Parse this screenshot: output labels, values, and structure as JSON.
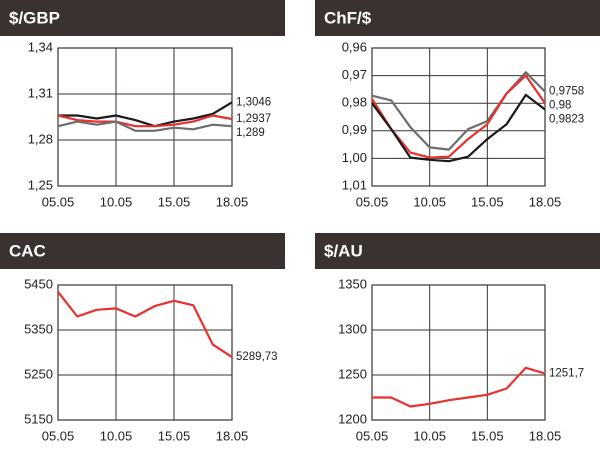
{
  "chart_data": [
    {
      "type": "line",
      "title": "$/GBP",
      "categories": [
        "05.05",
        null,
        null,
        "10.05",
        null,
        null,
        "15.05",
        null,
        null,
        "18.05"
      ],
      "series": [
        {
          "color": "#1a1a1a",
          "values": [
            1.296,
            1.296,
            1.294,
            1.296,
            1.293,
            1.289,
            1.292,
            1.294,
            1.297,
            1.3046
          ],
          "value_labels": [
            null,
            null,
            null,
            null,
            null,
            null,
            null,
            null,
            null,
            "1,3046"
          ]
        },
        {
          "color": "#e8312f",
          "values": [
            1.296,
            1.293,
            1.292,
            1.292,
            1.289,
            1.289,
            1.29,
            1.292,
            1.296,
            1.2937
          ],
          "value_labels": [
            null,
            null,
            null,
            null,
            null,
            null,
            null,
            null,
            null,
            "1,2937"
          ]
        },
        {
          "color": "#6d6d6d",
          "values": [
            1.289,
            1.292,
            1.29,
            1.292,
            1.286,
            1.286,
            1.288,
            1.287,
            1.29,
            1.289
          ],
          "value_labels": [
            null,
            null,
            null,
            null,
            null,
            null,
            null,
            null,
            null,
            "1,289"
          ]
        }
      ],
      "ylim": [
        1.25,
        1.34
      ],
      "yticks": [
        {
          "value": 1.34,
          "label": "1,34"
        },
        {
          "value": 1.31,
          "label": "1,31"
        },
        {
          "value": 1.28,
          "label": "1,28"
        },
        {
          "value": 1.25,
          "label": "1,25"
        }
      ],
      "grid": true
    },
    {
      "type": "line",
      "title": "ChF/$",
      "categories": [
        "05.05",
        null,
        null,
        "10.05",
        null,
        null,
        "15.05",
        null,
        null,
        "18.05"
      ],
      "series": [
        {
          "color": "#6d6d6d",
          "values": [
            0.9773,
            0.979,
            0.9887,
            0.996,
            0.9968,
            0.9894,
            0.9865,
            0.9765,
            0.9688,
            0.9758
          ],
          "value_labels": [
            null,
            null,
            null,
            null,
            null,
            null,
            null,
            null,
            null,
            "0,9758"
          ]
        },
        {
          "color": "#e8312f",
          "values": [
            0.9784,
            0.9894,
            0.9979,
            0.9997,
            0.9994,
            0.993,
            0.9876,
            0.9765,
            0.97,
            0.98
          ],
          "value_labels": [
            null,
            null,
            null,
            null,
            null,
            null,
            null,
            null,
            null,
            "0,98"
          ]
        },
        {
          "color": "#1a1a1a",
          "values": [
            0.98,
            0.9894,
            0.9997,
            1.0005,
            1.001,
            0.9994,
            0.993,
            0.9876,
            0.977,
            0.9823
          ],
          "value_labels": [
            null,
            null,
            null,
            null,
            null,
            null,
            null,
            null,
            null,
            "0,9823"
          ]
        }
      ],
      "ylim": [
        1.01,
        0.96
      ],
      "yticks": [
        {
          "value": 0.96,
          "label": "0,96"
        },
        {
          "value": 0.97,
          "label": "0,97"
        },
        {
          "value": 0.98,
          "label": "0,98"
        },
        {
          "value": 0.99,
          "label": "0,99"
        },
        {
          "value": 1.0,
          "label": "1,00"
        },
        {
          "value": 1.01,
          "label": "1,01"
        }
      ],
      "grid": true
    },
    {
      "type": "line",
      "title": "CAC",
      "categories": [
        "05.05",
        null,
        null,
        "10.05",
        null,
        null,
        "15.05",
        null,
        null,
        "18.05"
      ],
      "values": [
        5435,
        5380,
        5395,
        5398,
        5380,
        5403,
        5415,
        5405,
        5318,
        5289.73
      ],
      "value_labels": [
        null,
        null,
        null,
        null,
        null,
        null,
        null,
        null,
        null,
        "5289,73"
      ],
      "color": "#e8312f",
      "ylim": [
        5150,
        5450
      ],
      "yticks": [
        5450,
        5350,
        5250,
        5150
      ],
      "grid": true
    },
    {
      "type": "line",
      "title": "$/AU",
      "categories": [
        "05.05",
        null,
        null,
        "10.05",
        null,
        null,
        "15.05",
        null,
        null,
        "18.05"
      ],
      "values": [
        1225,
        1225,
        1215,
        1218,
        1222,
        1225,
        1228,
        1235,
        1258,
        1251.7
      ],
      "value_labels": [
        null,
        null,
        null,
        null,
        null,
        null,
        null,
        null,
        null,
        "1251,7"
      ],
      "color": "#e8312f",
      "ylim": [
        1200,
        1350
      ],
      "yticks": [
        1350,
        1300,
        1250,
        1200
      ],
      "grid": true
    }
  ]
}
